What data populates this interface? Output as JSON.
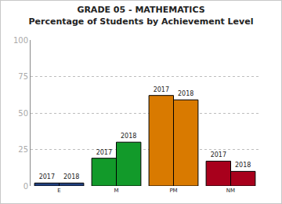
{
  "chart_data": {
    "type": "bar",
    "title": "GRADE 05 - MATHEMATICS",
    "subtitle": "Percentage of Students by Achievement Level",
    "categories": [
      "E",
      "M",
      "PM",
      "NM"
    ],
    "series": [
      {
        "name": "2017",
        "values": [
          2,
          19,
          62,
          17
        ],
        "colors": [
          "#1f3f7f",
          "#129a2a",
          "#d97a00",
          "#a8001c"
        ]
      },
      {
        "name": "2018",
        "values": [
          2,
          30,
          59,
          10
        ],
        "colors": [
          "#1f3f7f",
          "#129a2a",
          "#d97a00",
          "#a8001c"
        ]
      }
    ],
    "ylim": [
      0,
      100
    ],
    "yticks": [
      0,
      25,
      50,
      75,
      100
    ],
    "grid": true
  }
}
